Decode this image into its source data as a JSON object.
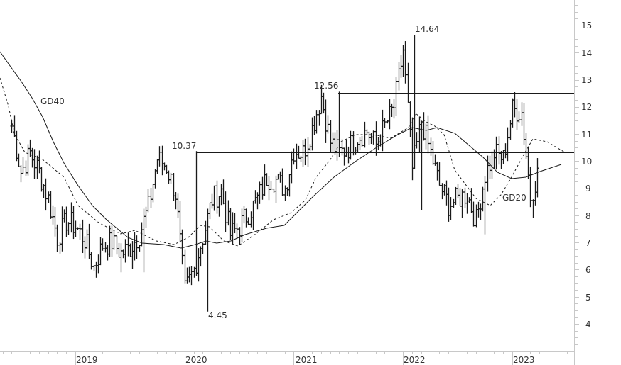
{
  "chart_data": {
    "type": "ohlc",
    "title": "",
    "xlabel": "",
    "ylabel": "",
    "ylim": [
      3.2,
      15.9
    ],
    "y_ticks": [
      4,
      5,
      6,
      7,
      8,
      9,
      10,
      11,
      12,
      13,
      14,
      15
    ],
    "x_ticks": [
      "2019",
      "2020",
      "2021",
      "2022",
      "2023"
    ],
    "grid": false,
    "legend": "inline labels",
    "annotations": [
      {
        "text": "10.37",
        "kind": "high",
        "date": "2020-01"
      },
      {
        "text": "4.45",
        "kind": "low",
        "date": "2020-03"
      },
      {
        "text": "12.56",
        "kind": "high",
        "date": "2021-04"
      },
      {
        "text": "14.64",
        "kind": "high",
        "date": "2022-01"
      },
      {
        "text": "GD40",
        "kind": "series-label"
      },
      {
        "text": "GD20",
        "kind": "series-label"
      }
    ],
    "horizontal_lines": [
      {
        "value": 10.37,
        "from": "2020-01",
        "to": "end"
      },
      {
        "value": 12.56,
        "from": "2021-04",
        "to": "end"
      }
    ],
    "series": [
      {
        "name": "Price (weekly OHLC)",
        "style": "bars",
        "x": [
          "2018-06",
          "2018-07",
          "2018-08",
          "2018-09",
          "2018-10",
          "2018-11",
          "2018-12",
          "2019-01",
          "2019-02",
          "2019-03",
          "2019-04",
          "2019-05",
          "2019-06",
          "2019-07",
          "2019-08",
          "2019-09",
          "2019-10",
          "2019-11",
          "2019-12",
          "2020-01",
          "2020-02",
          "2020-03",
          "2020-04",
          "2020-05",
          "2020-06",
          "2020-07",
          "2020-08",
          "2020-09",
          "2020-10",
          "2020-11",
          "2020-12",
          "2021-01",
          "2021-02",
          "2021-03",
          "2021-04",
          "2021-05",
          "2021-06",
          "2021-07",
          "2021-08",
          "2021-09",
          "2021-10",
          "2021-11",
          "2021-12",
          "2022-01",
          "2022-02",
          "2022-03",
          "2022-04",
          "2022-05",
          "2022-06",
          "2022-07",
          "2022-08",
          "2022-09",
          "2022-10",
          "2022-11",
          "2022-12",
          "2023-01",
          "2023-02",
          "2023-03",
          "2023-04"
        ],
        "close": [
          11.3,
          9.6,
          10.3,
          9.6,
          8.6,
          7.2,
          7.8,
          7.6,
          7.1,
          6.1,
          6.9,
          7.0,
          6.6,
          6.8,
          7.3,
          8.3,
          10.1,
          9.8,
          8.8,
          5.2,
          6.0,
          7.2,
          8.6,
          8.9,
          7.3,
          7.6,
          8.1,
          8.6,
          9.4,
          9.3,
          9.0,
          10.4,
          10.3,
          11.2,
          12.4,
          10.7,
          10.3,
          10.5,
          10.9,
          11.1,
          10.6,
          11.3,
          12.0,
          14.1,
          9.7,
          11.5,
          10.3,
          9.1,
          8.4,
          8.6,
          8.8,
          7.8,
          9.5,
          10.3,
          10.1,
          11.9,
          11.8,
          8.7,
          9.8
        ]
      },
      {
        "name": "GD20",
        "style": "dashed"
      },
      {
        "name": "GD40",
        "style": "solid"
      }
    ]
  },
  "axis": {
    "y_labels": [
      "15",
      "14",
      "13",
      "12",
      "11",
      "10",
      "9",
      "8",
      "7",
      "6",
      "5",
      "4"
    ],
    "x_labels": [
      "2019",
      "2020",
      "2021",
      "2022",
      "2023"
    ]
  },
  "labels": {
    "gd40": "GD40",
    "gd20": "GD20",
    "high_2020": "10.37",
    "low_2020": "4.45",
    "high_2021": "12.56",
    "high_2022": "14.64"
  },
  "colors": {
    "bars": "#1a1a1a",
    "ma": "#1a1a1a",
    "axis": "#c8c8c8",
    "text": "#333333"
  }
}
